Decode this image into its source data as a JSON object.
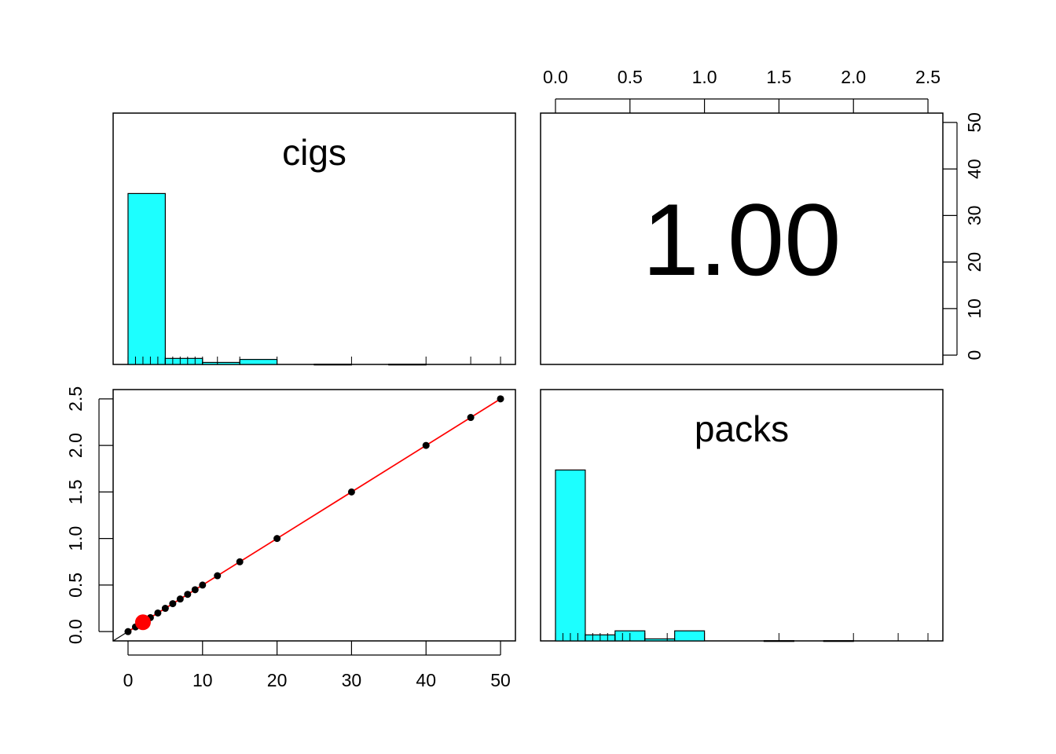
{
  "chart_data": [
    {
      "panel": "cigs-histogram",
      "type": "bar",
      "title": "cigs",
      "bins": [
        {
          "from": 0,
          "to": 5,
          "count": 34
        },
        {
          "from": 5,
          "to": 10,
          "count": 1.2
        },
        {
          "from": 10,
          "to": 15,
          "count": 0.4
        },
        {
          "from": 15,
          "to": 20,
          "count": 1.0
        },
        {
          "from": 20,
          "to": 25,
          "count": 0
        },
        {
          "from": 25,
          "to": 30,
          "count": 0.05
        },
        {
          "from": 30,
          "to": 35,
          "count": 0
        },
        {
          "from": 35,
          "to": 40,
          "count": 0.05
        },
        {
          "from": 40,
          "to": 45,
          "count": 0
        },
        {
          "from": 45,
          "to": 50,
          "count": 0
        }
      ],
      "rug": [
        0,
        1,
        2,
        3,
        4,
        5,
        6,
        7,
        8,
        9,
        10,
        12,
        15,
        20,
        30,
        40,
        46,
        50
      ],
      "xlim": [
        -2,
        52
      ],
      "ylim": [
        0,
        50
      ],
      "color": "#1CFFFF"
    },
    {
      "panel": "correlation",
      "type": "text",
      "value": "1.00",
      "top_axis": {
        "ticks": [
          "0.0",
          "0.5",
          "1.0",
          "1.5",
          "2.0",
          "2.5"
        ],
        "range": [
          -0.1,
          2.6
        ]
      },
      "right_axis": {
        "ticks": [
          "0",
          "10",
          "20",
          "30",
          "40",
          "50"
        ],
        "range": [
          -2,
          52
        ]
      }
    },
    {
      "panel": "scatter",
      "type": "scatter",
      "x": [
        0,
        1,
        2,
        3,
        4,
        5,
        6,
        7,
        8,
        9,
        10,
        12,
        15,
        20,
        30,
        40,
        46,
        50
      ],
      "y": [
        0,
        0.05,
        0.1,
        0.15,
        0.2,
        0.25,
        0.3,
        0.35,
        0.4,
        0.45,
        0.5,
        0.6,
        0.75,
        1.0,
        1.5,
        2.0,
        2.3,
        2.5
      ],
      "fit_line": {
        "x0": 0,
        "y0": 0,
        "x1": 50,
        "y1": 2.5
      },
      "mean_point": {
        "x": 2,
        "y": 0.1
      },
      "xlim": [
        -2,
        52
      ],
      "ylim": [
        -0.1,
        2.6
      ],
      "xticks": [
        "0",
        "10",
        "20",
        "30",
        "40",
        "50"
      ],
      "yticks": [
        "0.0",
        "0.5",
        "1.0",
        "1.5",
        "2.0",
        "2.5"
      ],
      "point_color": "#000000",
      "line_color": "#FF0000",
      "mean_color": "#FF0000"
    },
    {
      "panel": "packs-histogram",
      "type": "bar",
      "title": "packs",
      "bins": [
        {
          "from": 0,
          "to": 0.2,
          "count": 34
        },
        {
          "from": 0.2,
          "to": 0.4,
          "count": 1.2
        },
        {
          "from": 0.4,
          "to": 0.6,
          "count": 2.0
        },
        {
          "from": 0.6,
          "to": 0.8,
          "count": 0.4
        },
        {
          "from": 0.8,
          "to": 1.0,
          "count": 2.0
        },
        {
          "from": 1.0,
          "to": 1.2,
          "count": 0
        },
        {
          "from": 1.2,
          "to": 1.4,
          "count": 0
        },
        {
          "from": 1.4,
          "to": 1.6,
          "count": 0.05
        },
        {
          "from": 1.6,
          "to": 1.8,
          "count": 0
        },
        {
          "from": 1.8,
          "to": 2.0,
          "count": 0.05
        },
        {
          "from": 2.0,
          "to": 2.2,
          "count": 0
        },
        {
          "from": 2.2,
          "to": 2.4,
          "count": 0
        },
        {
          "from": 2.4,
          "to": 2.6,
          "count": 0
        }
      ],
      "rug": [
        0,
        0.05,
        0.1,
        0.15,
        0.2,
        0.25,
        0.3,
        0.35,
        0.4,
        0.45,
        0.5,
        0.6,
        0.75,
        1.0,
        1.5,
        2.0,
        2.3,
        2.5
      ],
      "xlim": [
        -0.1,
        2.6
      ],
      "ylim": [
        0,
        50
      ],
      "color": "#1CFFFF"
    }
  ]
}
